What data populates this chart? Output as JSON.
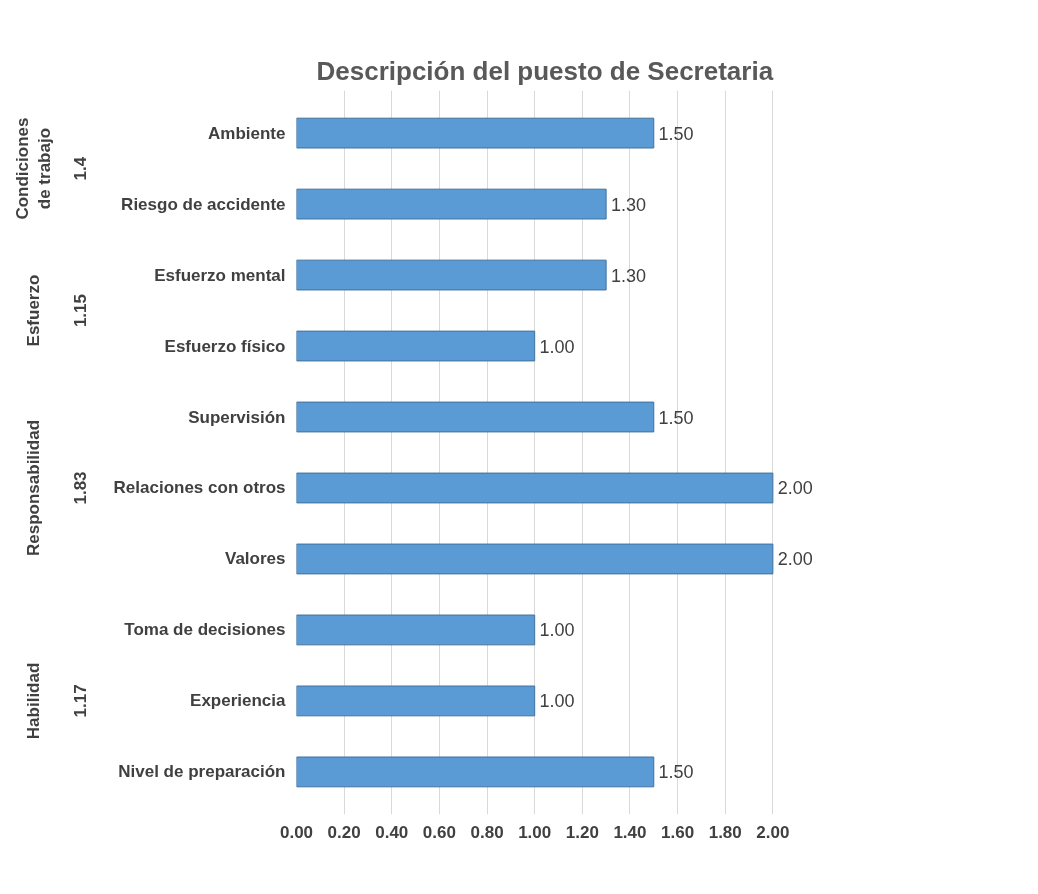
{
  "chart_data": {
    "type": "bar",
    "orientation": "horizontal",
    "title": "Descripción del puesto de Secretaria",
    "categories": [
      "Ambiente",
      "Riesgo de accidente",
      "Esfuerzo mental",
      "Esfuerzo físico",
      "Supervisión",
      "Relaciones con otros",
      "Valores",
      "Toma de decisiones",
      "Experiencia",
      "Nivel de preparación"
    ],
    "values": [
      1.5,
      1.3,
      1.3,
      1.0,
      1.5,
      2.0,
      2.0,
      1.0,
      1.0,
      1.5
    ],
    "value_labels": [
      "1.50",
      "1.30",
      "1.30",
      "1.00",
      "1.50",
      "2.00",
      "2.00",
      "1.00",
      "1.00",
      "1.50"
    ],
    "color": "#5b9bd5",
    "xlim": [
      0,
      2.0
    ],
    "xticks": [
      {
        "value": 0,
        "label": "0.00"
      },
      {
        "value": 0.2,
        "label": "0.20"
      },
      {
        "value": 0.4,
        "label": "0.40"
      },
      {
        "value": 0.6,
        "label": "0.60"
      },
      {
        "value": 0.8,
        "label": "0.80"
      },
      {
        "value": 1.0,
        "label": "1.00"
      },
      {
        "value": 1.2,
        "label": "1.20"
      },
      {
        "value": 1.4,
        "label": "1.40"
      },
      {
        "value": 1.6,
        "label": "1.60"
      },
      {
        "value": 1.8,
        "label": "1.80"
      },
      {
        "value": 2.0,
        "label": "2.00"
      }
    ],
    "grid": "x",
    "annotations": [
      "Condiciones\nde trabajo",
      "1.4",
      "Esfuerzo",
      "1.15",
      "Responsabilidad",
      "1.83",
      "Habilidad",
      "1.17"
    ]
  }
}
